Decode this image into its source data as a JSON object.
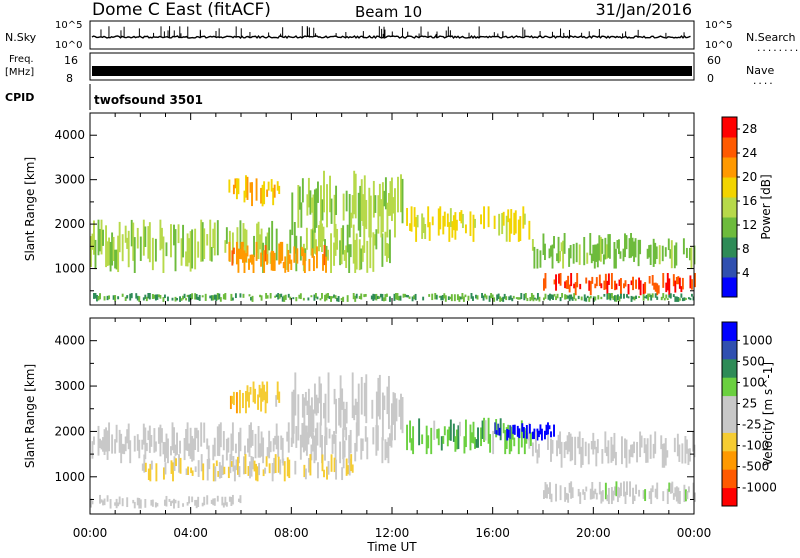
{
  "header": {
    "station": "Dome C East (fitACF)",
    "beam": "Beam 10",
    "date": "31/Jan/2016"
  },
  "nsky": {
    "label": "N.Sky",
    "ticks": [
      "10^5",
      "10^0"
    ],
    "right_label": "N.Search",
    "right_dots": "........",
    "right_ticks": [
      "10^5",
      "10^0"
    ]
  },
  "freq": {
    "label_lines": [
      "Freq.",
      "[MHz]"
    ],
    "ticks": [
      "16",
      "8"
    ],
    "right_label": "Nave",
    "right_dots": "....",
    "right_ticks": [
      "60",
      "0"
    ]
  },
  "cpid": {
    "label": "CPID",
    "value": "twofsound 3501"
  },
  "colors": {
    "power": [
      "#0000ff",
      "#3050b0",
      "#2e8b57",
      "#6dbb3c",
      "#b7d94a",
      "#f2d400",
      "#ff9900",
      "#ff5a00",
      "#ff0000"
    ],
    "velocity": [
      "#ff0000",
      "#ff5a00",
      "#ff9900",
      "#f5cc33",
      "#c8c8c8",
      "#c8c8c8",
      "#6bd040",
      "#2e8b57",
      "#3050b0",
      "#0000ff"
    ]
  },
  "chart_data": [
    {
      "type": "heatmap",
      "title": "",
      "xlabel": "Time UT",
      "ylabel": "Slant Range [km]",
      "xlim": [
        "00:00",
        "24:00"
      ],
      "ylim": [
        180,
        4500
      ],
      "x_ticks": [
        "00:00",
        "04:00",
        "08:00",
        "12:00",
        "16:00",
        "20:00",
        "00:00"
      ],
      "y_ticks": [
        1000,
        2000,
        3000,
        4000
      ],
      "colorbar": {
        "label": "Power [dB]",
        "ticks": [
          "28",
          "24",
          "20",
          "16",
          "12",
          "8",
          "4"
        ],
        "range": [
          0,
          30
        ]
      },
      "echo_regions": [
        {
          "t_start": 0.0,
          "t_end": 12.0,
          "r_start": 900,
          "r_end": 2100,
          "value": 14
        },
        {
          "t_start": 5.5,
          "t_end": 9.5,
          "r_start": 900,
          "r_end": 1600,
          "value": 22
        },
        {
          "t_start": 8.0,
          "t_end": 12.5,
          "r_start": 1700,
          "r_end": 3200,
          "value": 14
        },
        {
          "t_start": 12.5,
          "t_end": 17.5,
          "r_start": 1600,
          "r_end": 2400,
          "value": 18
        },
        {
          "t_start": 17.5,
          "t_end": 24.0,
          "r_start": 1000,
          "r_end": 1800,
          "value": 12
        },
        {
          "t_start": 18.0,
          "t_end": 24.0,
          "r_start": 400,
          "r_end": 900,
          "value": 26
        },
        {
          "t_start": 0.0,
          "t_end": 24.0,
          "r_start": 250,
          "r_end": 450,
          "value": 10
        },
        {
          "t_start": 5.5,
          "t_end": 7.5,
          "r_start": 2400,
          "r_end": 3100,
          "value": 20
        }
      ]
    },
    {
      "type": "heatmap",
      "title": "",
      "xlabel": "Time UT",
      "ylabel": "Slant Range [km]",
      "xlim": [
        "00:00",
        "24:00"
      ],
      "ylim": [
        180,
        4500
      ],
      "x_ticks": [
        "00:00",
        "04:00",
        "08:00",
        "12:00",
        "16:00",
        "20:00",
        "00:00"
      ],
      "y_ticks": [
        1000,
        2000,
        3000,
        4000
      ],
      "colorbar": {
        "label": "Velocity [m s^-1]",
        "ticks": [
          "1000",
          "500",
          "100",
          "25",
          "-25",
          "-100",
          "-500",
          "-1000"
        ],
        "range": [
          -1000,
          1000
        ]
      },
      "echo_regions": [
        {
          "t_start": 0.0,
          "t_end": 12.0,
          "r_start": 1300,
          "r_end": 2200,
          "value": 0
        },
        {
          "t_start": 2.0,
          "t_end": 10.5,
          "r_start": 900,
          "r_end": 1500,
          "value": -200
        },
        {
          "t_start": 8.0,
          "t_end": 12.5,
          "r_start": 1800,
          "r_end": 3300,
          "value": 0
        },
        {
          "t_start": 12.5,
          "t_end": 17.5,
          "r_start": 1500,
          "r_end": 2300,
          "value": 300
        },
        {
          "t_start": 16.0,
          "t_end": 18.5,
          "r_start": 1800,
          "r_end": 2200,
          "value": 900
        },
        {
          "t_start": 17.5,
          "t_end": 24.0,
          "r_start": 1200,
          "r_end": 2000,
          "value": 0
        },
        {
          "t_start": 18.0,
          "t_end": 24.0,
          "r_start": 400,
          "r_end": 900,
          "value": 100
        },
        {
          "t_start": 0.0,
          "t_end": 6.0,
          "r_start": 300,
          "r_end": 600,
          "value": 80
        },
        {
          "t_start": 5.5,
          "t_end": 7.5,
          "r_start": 2400,
          "r_end": 3100,
          "value": -300
        }
      ]
    }
  ]
}
